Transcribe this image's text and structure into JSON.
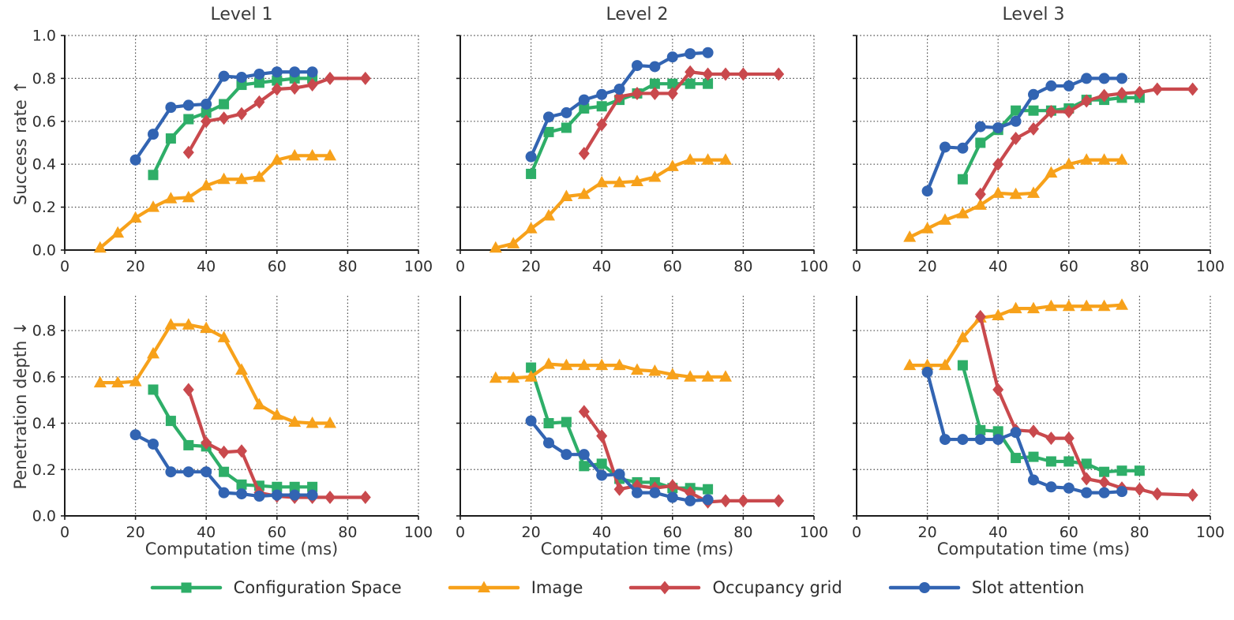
{
  "figure": {
    "background": "#ffffff",
    "text_color": "#2e2e2e"
  },
  "chart_data": {
    "type": "line",
    "grid": "dotted",
    "legend_position": "bottom",
    "xlabel": "Computation time (ms)",
    "xlim": [
      0,
      100
    ],
    "xticks": [
      0,
      20,
      40,
      60,
      80,
      100
    ],
    "xtick_labels": [
      "0",
      "20",
      "40",
      "60",
      "80",
      "100"
    ],
    "columns": [
      "Level 1",
      "Level 2",
      "Level 3"
    ],
    "rows": [
      {
        "key": "success-rate",
        "ylabel": "Success rate ↑",
        "ylim": [
          0,
          1.0
        ],
        "yticks": [
          0,
          0.2,
          0.4,
          0.6,
          0.8,
          1.0
        ],
        "ytick_labels": [
          "0.0",
          "0.2",
          "0.4",
          "0.6",
          "0.8",
          "1.0"
        ]
      },
      {
        "key": "penetration-depth",
        "ylabel": "Penetration depth ↓",
        "ylim": [
          0,
          0.95
        ],
        "yticks": [
          0,
          0.2,
          0.4,
          0.6,
          0.8
        ],
        "ytick_labels": [
          "0.0",
          "0.2",
          "0.4",
          "0.6",
          "0.8"
        ]
      }
    ],
    "series_meta": [
      {
        "name": "Configuration Space",
        "color": "#2eae68",
        "marker": "square"
      },
      {
        "name": "Image",
        "color": "#f7a11a",
        "marker": "triangle"
      },
      {
        "name": "Occupancy grid",
        "color": "#c9494d",
        "marker": "diamond"
      },
      {
        "name": "Slot attention",
        "color": "#3264b2",
        "marker": "circle"
      }
    ],
    "panels": [
      {
        "row": 0,
        "col": 0,
        "series": [
          {
            "name": "Configuration Space",
            "x": [
              25,
              30,
              35,
              40,
              45,
              50,
              55,
              60,
              65,
              70
            ],
            "y": [
              0.35,
              0.52,
              0.61,
              0.64,
              0.68,
              0.77,
              0.78,
              0.79,
              0.8,
              0.8
            ]
          },
          {
            "name": "Image",
            "x": [
              10,
              15,
              20,
              25,
              30,
              35,
              40,
              45,
              50,
              55,
              60,
              65,
              70,
              75
            ],
            "y": [
              0.01,
              0.08,
              0.15,
              0.2,
              0.24,
              0.245,
              0.3,
              0.33,
              0.33,
              0.34,
              0.42,
              0.44,
              0.44,
              0.44
            ]
          },
          {
            "name": "Occupancy grid",
            "x": [
              35,
              40,
              45,
              50,
              55,
              60,
              65,
              70,
              75,
              85
            ],
            "y": [
              0.455,
              0.6,
              0.615,
              0.635,
              0.69,
              0.75,
              0.755,
              0.77,
              0.8,
              0.8
            ]
          },
          {
            "name": "Slot attention",
            "x": [
              20,
              25,
              30,
              35,
              40,
              45,
              50,
              55,
              60,
              65,
              70
            ],
            "y": [
              0.42,
              0.54,
              0.665,
              0.675,
              0.68,
              0.81,
              0.805,
              0.82,
              0.83,
              0.83,
              0.83
            ]
          }
        ]
      },
      {
        "row": 0,
        "col": 1,
        "series": [
          {
            "name": "Configuration Space",
            "x": [
              20,
              25,
              30,
              35,
              40,
              45,
              50,
              55,
              60,
              65,
              70
            ],
            "y": [
              0.355,
              0.55,
              0.57,
              0.66,
              0.67,
              0.7,
              0.73,
              0.775,
              0.775,
              0.775,
              0.775
            ]
          },
          {
            "name": "Image",
            "x": [
              10,
              15,
              20,
              25,
              30,
              35,
              40,
              45,
              50,
              55,
              60,
              65,
              70,
              75
            ],
            "y": [
              0.01,
              0.03,
              0.1,
              0.16,
              0.25,
              0.26,
              0.315,
              0.315,
              0.32,
              0.34,
              0.39,
              0.42,
              0.42,
              0.42
            ]
          },
          {
            "name": "Occupancy grid",
            "x": [
              35,
              40,
              45,
              50,
              55,
              60,
              65,
              70,
              75,
              80,
              90
            ],
            "y": [
              0.45,
              0.585,
              0.715,
              0.73,
              0.73,
              0.73,
              0.83,
              0.82,
              0.82,
              0.82,
              0.82
            ]
          },
          {
            "name": "Slot attention",
            "x": [
              20,
              25,
              30,
              35,
              40,
              45,
              50,
              55,
              60,
              65,
              70
            ],
            "y": [
              0.435,
              0.62,
              0.64,
              0.7,
              0.725,
              0.75,
              0.86,
              0.855,
              0.9,
              0.915,
              0.92
            ]
          }
        ]
      },
      {
        "row": 0,
        "col": 2,
        "series": [
          {
            "name": "Configuration Space",
            "x": [
              30,
              35,
              40,
              45,
              50,
              55,
              60,
              65,
              70,
              75,
              80
            ],
            "y": [
              0.33,
              0.5,
              0.56,
              0.65,
              0.65,
              0.65,
              0.66,
              0.7,
              0.7,
              0.71,
              0.71
            ]
          },
          {
            "name": "Image",
            "x": [
              15,
              20,
              25,
              30,
              35,
              40,
              45,
              50,
              55,
              60,
              65,
              70,
              75
            ],
            "y": [
              0.06,
              0.1,
              0.14,
              0.17,
              0.21,
              0.265,
              0.26,
              0.265,
              0.36,
              0.4,
              0.42,
              0.42,
              0.42
            ]
          },
          {
            "name": "Occupancy grid",
            "x": [
              35,
              40,
              45,
              50,
              55,
              60,
              65,
              70,
              75,
              80,
              85,
              95
            ],
            "y": [
              0.26,
              0.4,
              0.52,
              0.565,
              0.645,
              0.645,
              0.695,
              0.72,
              0.73,
              0.735,
              0.75,
              0.75
            ]
          },
          {
            "name": "Slot attention",
            "x": [
              20,
              25,
              30,
              35,
              40,
              45,
              50,
              55,
              60,
              65,
              70,
              75
            ],
            "y": [
              0.275,
              0.48,
              0.475,
              0.575,
              0.57,
              0.6,
              0.725,
              0.765,
              0.765,
              0.8,
              0.8,
              0.8
            ]
          }
        ]
      },
      {
        "row": 1,
        "col": 0,
        "series": [
          {
            "name": "Configuration Space",
            "x": [
              25,
              30,
              35,
              40,
              45,
              50,
              55,
              60,
              65,
              70
            ],
            "y": [
              0.545,
              0.41,
              0.305,
              0.3,
              0.19,
              0.135,
              0.13,
              0.125,
              0.125,
              0.125
            ]
          },
          {
            "name": "Image",
            "x": [
              10,
              15,
              20,
              25,
              30,
              35,
              40,
              45,
              50,
              55,
              60,
              65,
              70,
              75
            ],
            "y": [
              0.575,
              0.575,
              0.58,
              0.7,
              0.825,
              0.825,
              0.81,
              0.77,
              0.63,
              0.48,
              0.435,
              0.405,
              0.4,
              0.4
            ]
          },
          {
            "name": "Occupancy grid",
            "x": [
              35,
              40,
              45,
              50,
              55,
              60,
              65,
              70,
              75,
              85
            ],
            "y": [
              0.545,
              0.315,
              0.275,
              0.28,
              0.1,
              0.085,
              0.08,
              0.08,
              0.08,
              0.08
            ]
          },
          {
            "name": "Slot attention",
            "x": [
              20,
              25,
              30,
              35,
              40,
              45,
              50,
              55,
              60,
              65,
              70
            ],
            "y": [
              0.35,
              0.31,
              0.19,
              0.19,
              0.19,
              0.1,
              0.095,
              0.085,
              0.09,
              0.09,
              0.09
            ]
          }
        ]
      },
      {
        "row": 1,
        "col": 1,
        "series": [
          {
            "name": "Configuration Space",
            "x": [
              20,
              25,
              30,
              35,
              40,
              45,
              50,
              55,
              60,
              65,
              70
            ],
            "y": [
              0.64,
              0.4,
              0.405,
              0.215,
              0.225,
              0.16,
              0.145,
              0.145,
              0.12,
              0.12,
              0.115
            ]
          },
          {
            "name": "Image",
            "x": [
              10,
              15,
              20,
              25,
              30,
              35,
              40,
              45,
              50,
              55,
              60,
              65,
              70,
              75
            ],
            "y": [
              0.595,
              0.595,
              0.6,
              0.655,
              0.65,
              0.65,
              0.65,
              0.65,
              0.63,
              0.625,
              0.61,
              0.6,
              0.6,
              0.6
            ]
          },
          {
            "name": "Occupancy grid",
            "x": [
              35,
              40,
              45,
              50,
              55,
              60,
              65,
              70,
              75,
              80,
              90
            ],
            "y": [
              0.45,
              0.345,
              0.115,
              0.13,
              0.12,
              0.13,
              0.1,
              0.06,
              0.065,
              0.065,
              0.065
            ]
          },
          {
            "name": "Slot attention",
            "x": [
              20,
              25,
              30,
              35,
              40,
              45,
              50,
              55,
              60,
              65,
              70
            ],
            "y": [
              0.41,
              0.315,
              0.265,
              0.265,
              0.175,
              0.18,
              0.1,
              0.1,
              0.08,
              0.065,
              0.07
            ]
          }
        ]
      },
      {
        "row": 1,
        "col": 2,
        "series": [
          {
            "name": "Configuration Space",
            "x": [
              30,
              35,
              40,
              45,
              50,
              55,
              60,
              65,
              70,
              75,
              80
            ],
            "y": [
              0.65,
              0.37,
              0.365,
              0.25,
              0.255,
              0.235,
              0.235,
              0.225,
              0.19,
              0.195,
              0.195
            ]
          },
          {
            "name": "Image",
            "x": [
              15,
              20,
              25,
              30,
              35,
              40,
              45,
              50,
              55,
              60,
              65,
              70,
              75
            ],
            "y": [
              0.65,
              0.65,
              0.65,
              0.77,
              0.855,
              0.865,
              0.895,
              0.895,
              0.905,
              0.905,
              0.905,
              0.905,
              0.91
            ]
          },
          {
            "name": "Occupancy grid",
            "x": [
              35,
              40,
              45,
              50,
              55,
              60,
              65,
              70,
              75,
              80,
              85,
              95
            ],
            "y": [
              0.86,
              0.545,
              0.37,
              0.365,
              0.335,
              0.335,
              0.16,
              0.145,
              0.12,
              0.115,
              0.095,
              0.09
            ]
          },
          {
            "name": "Slot attention",
            "x": [
              20,
              25,
              30,
              35,
              40,
              45,
              50,
              55,
              60,
              65,
              70,
              75
            ],
            "y": [
              0.62,
              0.33,
              0.33,
              0.33,
              0.33,
              0.36,
              0.155,
              0.125,
              0.12,
              0.1,
              0.1,
              0.105
            ]
          }
        ]
      }
    ]
  }
}
